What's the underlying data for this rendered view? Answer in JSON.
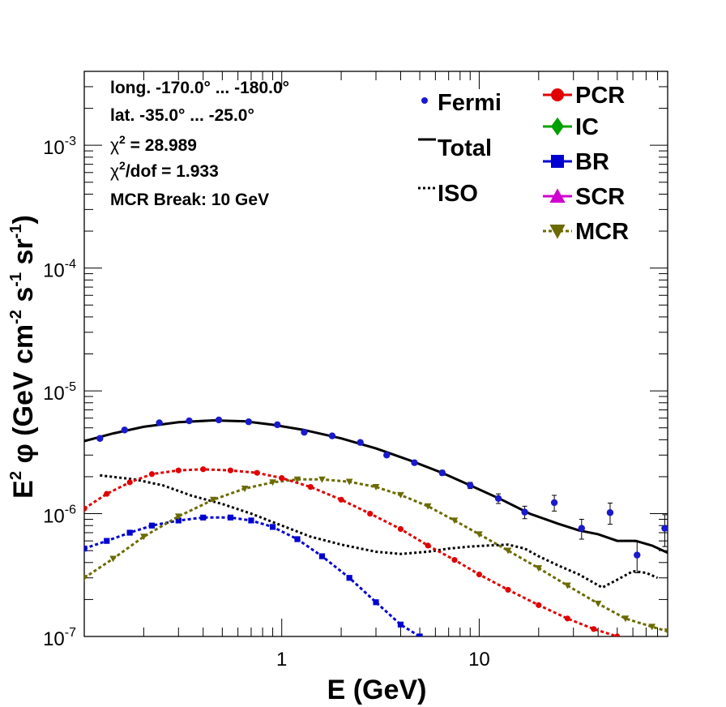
{
  "chart_data": {
    "type": "line",
    "xscale": "log",
    "yscale": "log",
    "xlim": [
      0.1,
      90
    ],
    "ylim": [
      1e-07,
      0.004
    ],
    "xlabel": "E (GeV)",
    "ylabel_parts": [
      "E",
      "2",
      " φ (GeV cm",
      "-2",
      " s",
      "-1",
      " sr",
      "-1",
      ")"
    ],
    "x_ticks": [
      {
        "v": 1,
        "label": "1"
      },
      {
        "v": 10,
        "label": "10"
      }
    ],
    "y_ticks": [
      {
        "v": 1e-07,
        "base": "10",
        "exp": "-7"
      },
      {
        "v": 1e-06,
        "base": "10",
        "exp": "-6"
      },
      {
        "v": 1e-05,
        "base": "10",
        "exp": "-5"
      },
      {
        "v": 0.0001,
        "base": "10",
        "exp": "-4"
      },
      {
        "v": 0.001,
        "base": "10",
        "exp": "-3"
      }
    ],
    "info": [
      {
        "text": "long. -170.0° ... -180.0°"
      },
      {
        "text": "lat. -35.0° ... -25.0°"
      },
      {
        "sym": "χ",
        "sup": "2",
        "text": " = 28.989"
      },
      {
        "sym": "χ",
        "sup": "2",
        "text": "/dof = 1.933"
      },
      {
        "text": "MCR Break: 10 GeV"
      }
    ],
    "legend_left": [
      {
        "name": "Fermi",
        "marker": "dot",
        "color": "#1a1acc"
      },
      {
        "name": "Total",
        "marker": "solid",
        "color": "#000000"
      },
      {
        "name": "ISO",
        "marker": "dotted",
        "color": "#000000"
      }
    ],
    "legend_right": [
      {
        "name": "PCR",
        "marker": "circle",
        "color": "#e00000"
      },
      {
        "name": "IC",
        "marker": "diamond",
        "color": "#00a000"
      },
      {
        "name": "BR",
        "marker": "square",
        "color": "#0000d0"
      },
      {
        "name": "SCR",
        "marker": "triangle-up",
        "color": "#d000d0"
      },
      {
        "name": "MCR",
        "marker": "triangle-down",
        "color": "#6b6b00"
      }
    ],
    "fermi": {
      "name": "Fermi",
      "color": "#1a1acc",
      "x": [
        0.12,
        0.16,
        0.24,
        0.34,
        0.48,
        0.68,
        0.95,
        1.3,
        1.8,
        2.5,
        3.4,
        4.7,
        6.5,
        9.0,
        12.5,
        17,
        24,
        33,
        46,
        63,
        87
      ],
      "y": [
        4.1e-06,
        4.8e-06,
        5.5e-06,
        5.7e-06,
        5.8e-06,
        5.6e-06,
        5.3e-06,
        4.6e-06,
        4.3e-06,
        3.8e-06,
        3e-06,
        2.6e-06,
        2.15e-06,
        1.7e-06,
        1.33e-06,
        1.03e-06,
        1.23e-06,
        7.6e-07,
        1.02e-06,
        4.6e-07,
        7.6e-07
      ],
      "err": [
        1e-07,
        1e-07,
        1e-07,
        1e-07,
        1e-07,
        1e-07,
        1e-07,
        1e-07,
        1e-07,
        1e-07,
        1e-07,
        1e-07,
        1e-07,
        1e-07,
        1.2e-07,
        1.2e-07,
        1.8e-07,
        1.4e-07,
        2e-07,
        1.3e-07,
        2.2e-07
      ]
    },
    "series": [
      {
        "name": "Total",
        "color": "#000000",
        "style": "solid",
        "x": [
          0.1,
          0.14,
          0.2,
          0.3,
          0.45,
          0.65,
          0.9,
          1.3,
          2.0,
          3.0,
          4.5,
          6.5,
          9.0,
          13,
          18,
          25,
          32,
          40,
          50,
          62,
          75,
          90
        ],
        "y": [
          3.9e-06,
          4.5e-06,
          5.1e-06,
          5.55e-06,
          5.75e-06,
          5.65e-06,
          5.3e-06,
          4.8e-06,
          4.1e-06,
          3.4e-06,
          2.7e-06,
          2.15e-06,
          1.7e-06,
          1.3e-06,
          1e-06,
          8.3e-07,
          7.3e-07,
          6.8e-07,
          6e-07,
          6e-07,
          5.5e-07,
          4.8e-07
        ]
      },
      {
        "name": "ISO",
        "color": "#000000",
        "style": "dotted",
        "x": [
          0.12,
          0.18,
          0.25,
          0.35,
          0.5,
          0.7,
          1.0,
          1.4,
          2.0,
          3.0,
          4.0,
          5.5,
          7.0,
          9.0,
          11,
          14,
          17,
          20,
          25,
          32,
          42,
          50,
          60,
          70,
          80
        ],
        "y": [
          2.05e-06,
          1.9e-06,
          1.7e-06,
          1.4e-06,
          1.2e-06,
          1e-06,
          8e-07,
          6.5e-07,
          5.6e-07,
          4.9e-07,
          4.7e-07,
          4.9e-07,
          5.2e-07,
          5.4e-07,
          5.5e-07,
          5.6e-07,
          5.2e-07,
          4.5e-07,
          3.8e-07,
          3.2e-07,
          2.5e-07,
          2.9e-07,
          3.4e-07,
          3.3e-07,
          3e-07
        ]
      },
      {
        "name": "PCR",
        "color": "#e00000",
        "style": "marker",
        "marker": "circle",
        "x": [
          0.1,
          0.13,
          0.17,
          0.22,
          0.3,
          0.4,
          0.55,
          0.75,
          1.0,
          1.4,
          2.0,
          2.8,
          4.0,
          5.5,
          7.5,
          10,
          14,
          20,
          28,
          38,
          50
        ],
        "y": [
          1.1e-06,
          1.45e-06,
          1.8e-06,
          2.1e-06,
          2.25e-06,
          2.3e-06,
          2.25e-06,
          2.15e-06,
          1.95e-06,
          1.65e-06,
          1.3e-06,
          1e-06,
          7.5e-07,
          5.5e-07,
          4.2e-07,
          3.2e-07,
          2.4e-07,
          1.8e-07,
          1.4e-07,
          1.15e-07,
          1e-07
        ]
      },
      {
        "name": "BR",
        "color": "#0000d0",
        "style": "marker",
        "marker": "square",
        "x": [
          0.1,
          0.13,
          0.17,
          0.22,
          0.3,
          0.4,
          0.55,
          0.7,
          0.9,
          1.2,
          1.6,
          2.2,
          3.0,
          4.0,
          5.0
        ],
        "y": [
          5.2e-07,
          6e-07,
          7e-07,
          8e-07,
          8.8e-07,
          9.3e-07,
          9.3e-07,
          8.8e-07,
          7.8e-07,
          6.2e-07,
          4.5e-07,
          3e-07,
          1.9e-07,
          1.25e-07,
          1e-07
        ]
      },
      {
        "name": "MCR",
        "color": "#6b6b00",
        "style": "marker",
        "marker": "triangle-down",
        "x": [
          0.1,
          0.14,
          0.2,
          0.3,
          0.45,
          0.65,
          0.9,
          1.2,
          1.6,
          2.2,
          3.0,
          4.0,
          5.5,
          7.5,
          10,
          14,
          20,
          28,
          40,
          55,
          75,
          90
        ],
        "y": [
          3e-07,
          4.3e-07,
          6.5e-07,
          9.5e-07,
          1.3e-06,
          1.6e-06,
          1.8e-06,
          1.9e-06,
          1.9e-06,
          1.82e-06,
          1.65e-06,
          1.42e-06,
          1.15e-06,
          8.8e-07,
          6.8e-07,
          5e-07,
          3.6e-07,
          2.6e-07,
          1.85e-07,
          1.4e-07,
          1.2e-07,
          1.1e-07
        ]
      }
    ]
  }
}
